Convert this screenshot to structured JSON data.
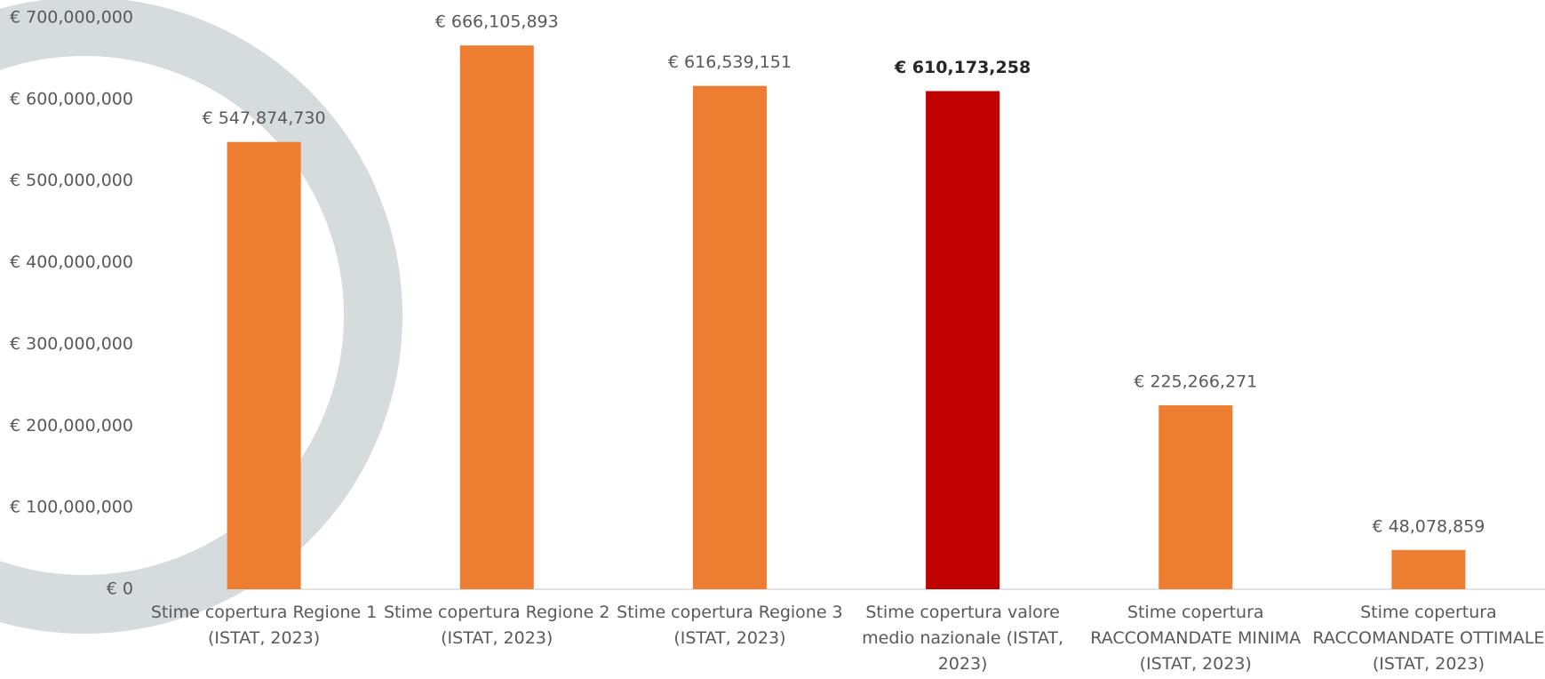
{
  "chart_data": {
    "type": "bar",
    "categories": [
      "Stime copertura Regione 1 (ISTAT, 2023)",
      "Stime copertura Regione 2 (ISTAT, 2023)",
      "Stime copertura Regione 3 (ISTAT, 2023)",
      "Stime copertura valore medio nazionale (ISTAT, 2023)",
      "Stime copertura RACCOMANDATE MINIMA (ISTAT, 2023)",
      "Stime copertura RACCOMANDATE OTTIMALE (ISTAT, 2023)"
    ],
    "values": [
      547874730,
      666105893,
      616539151,
      610173258,
      225266271,
      48078859
    ],
    "value_labels": [
      "€ 547,874,730",
      "€ 666,105,893",
      "€ 616,539,151",
      "€ 610,173,258",
      "€ 225,266,271",
      "€ 48,078,859"
    ],
    "colors": [
      "#ed7d31",
      "#ed7d31",
      "#ed7d31",
      "#c00000",
      "#ed7d31",
      "#ed7d31"
    ],
    "ylim": [
      0,
      700000000
    ],
    "yticks": [
      {
        "value": 0,
        "label": "€ 0"
      },
      {
        "value": 100000000,
        "label": "€ 100,000,000"
      },
      {
        "value": 200000000,
        "label": "€ 200,000,000"
      },
      {
        "value": 300000000,
        "label": "€ 300,000,000"
      },
      {
        "value": 400000000,
        "label": "€ 400,000,000"
      },
      {
        "value": 500000000,
        "label": "€ 500,000,000"
      },
      {
        "value": 600000000,
        "label": "€ 600,000,000"
      },
      {
        "value": 700000000,
        "label": "€ 700,000,000"
      }
    ],
    "grid": false
  }
}
